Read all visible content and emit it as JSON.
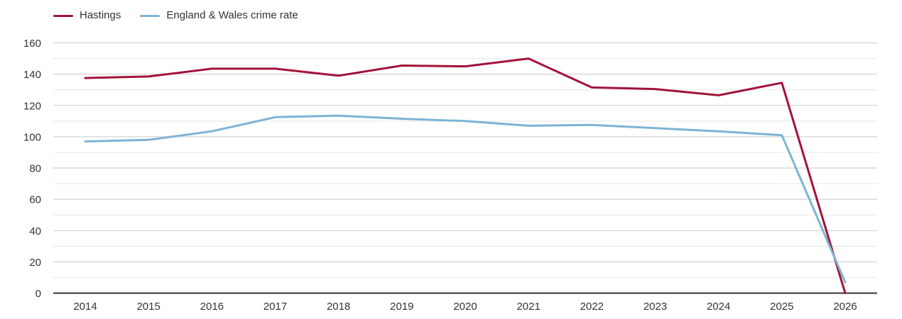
{
  "legend": {
    "items": [
      {
        "label": "Hastings",
        "color": "#a3123a"
      },
      {
        "label": "England & Wales crime rate",
        "color": "#7eb3d5"
      }
    ]
  },
  "chart_data": {
    "type": "line",
    "x": [
      2014,
      2015,
      2016,
      2017,
      2018,
      2019,
      2020,
      2021,
      2022,
      2023,
      2024,
      2025,
      2026
    ],
    "series": [
      {
        "name": "Hastings",
        "color": "#a3123a",
        "values": [
          137.5,
          138.5,
          143.5,
          143.5,
          139,
          145.5,
          145,
          150,
          131.5,
          130.5,
          126.5,
          134.5,
          0
        ]
      },
      {
        "name": "England & Wales crime rate",
        "color": "#7eb3d5",
        "values": [
          97,
          98,
          103.5,
          112.5,
          113.5,
          111.5,
          110,
          107,
          107.5,
          105.5,
          103.5,
          101,
          7
        ]
      }
    ],
    "ylim": [
      0,
      160
    ],
    "y_major_ticks": [
      0,
      20,
      40,
      60,
      80,
      100,
      120,
      140,
      160
    ],
    "y_minor_step": 10,
    "grid": true,
    "legend_position": "top-left",
    "colors": {
      "axis_line": "#333333",
      "grid_major": "#c9c9c9",
      "grid_minor": "#e8e8e8",
      "tick_text": "#333333"
    }
  }
}
